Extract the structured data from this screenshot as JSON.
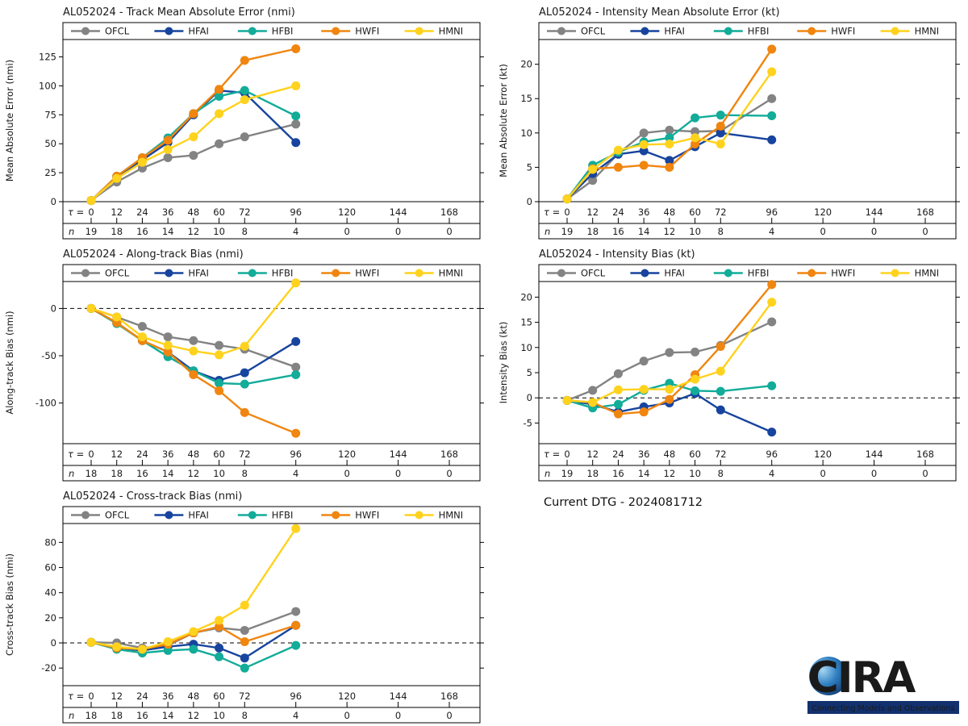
{
  "models": [
    {
      "name": "OFCL",
      "color": "#838383"
    },
    {
      "name": "HFAI",
      "color": "#17449e"
    },
    {
      "name": "HFBI",
      "color": "#12ac99"
    },
    {
      "name": "HWFI",
      "color": "#f0850f"
    },
    {
      "name": "HMNI",
      "color": "#ffd21d"
    }
  ],
  "footer": {
    "current_dtg": "Current DTG - 2024081712"
  },
  "logo": {
    "text": "CIRA",
    "tagline": "Connecting Models and Observations"
  },
  "axis_rows": {
    "tau_symbol": "τ",
    "tau_equals": " = ",
    "n_symbol": "n"
  },
  "chart_data": [
    {
      "id": "track-mae",
      "type": "line",
      "title": "AL052024 - Track Mean Absolute Error (nmi)",
      "ylabel": "Mean Absolute Error (nmi)",
      "legend_position": "top",
      "grid": false,
      "zero_line": false,
      "yticks": [
        0,
        25,
        50,
        75,
        100,
        125
      ],
      "ylim": [
        0,
        140
      ],
      "xticks": [
        0,
        12,
        24,
        36,
        48,
        60,
        72,
        96,
        120,
        144,
        168
      ],
      "x": [
        0,
        12,
        24,
        36,
        48,
        60,
        72,
        96
      ],
      "n": [
        19,
        18,
        16,
        14,
        12,
        10,
        8,
        4,
        0,
        0,
        0
      ],
      "series": [
        {
          "name": "OFCL",
          "values": [
            1,
            17,
            29,
            38,
            40,
            50,
            56,
            67
          ]
        },
        {
          "name": "HFAI",
          "values": [
            1,
            21,
            36,
            51,
            75,
            96,
            94,
            51
          ]
        },
        {
          "name": "HFBI",
          "values": [
            1,
            22,
            38,
            55,
            76,
            91,
            96,
            74
          ]
        },
        {
          "name": "HWFI",
          "values": [
            1,
            22,
            38,
            53,
            76,
            97,
            122,
            132
          ]
        },
        {
          "name": "HMNI",
          "values": [
            1,
            20,
            34,
            45,
            56,
            76,
            88,
            100
          ]
        }
      ]
    },
    {
      "id": "intensity-mae",
      "type": "line",
      "title": "AL052024 - Intensity Mean Absolute Error (kt)",
      "ylabel": "Mean Absolute Error (kt)",
      "legend_position": "top",
      "grid": false,
      "zero_line": false,
      "yticks": [
        0,
        5,
        10,
        15,
        20
      ],
      "ylim": [
        0,
        23.6
      ],
      "xticks": [
        0,
        12,
        24,
        36,
        48,
        60,
        72,
        96,
        120,
        144,
        168
      ],
      "x": [
        0,
        12,
        24,
        36,
        48,
        60,
        72,
        96
      ],
      "n": [
        19,
        18,
        16,
        14,
        12,
        10,
        8,
        4,
        0,
        0,
        0
      ],
      "series": [
        {
          "name": "OFCL",
          "values": [
            0.4,
            3.1,
            7.0,
            10.0,
            10.4,
            10.2,
            10.3,
            15.0
          ]
        },
        {
          "name": "HFAI",
          "values": [
            0.4,
            4.1,
            6.9,
            7.4,
            6.0,
            8.0,
            10.0,
            9.0
          ]
        },
        {
          "name": "HFBI",
          "values": [
            0.4,
            5.3,
            7.2,
            8.7,
            9.3,
            12.2,
            12.6,
            12.5
          ]
        },
        {
          "name": "HWFI",
          "values": [
            0.4,
            4.8,
            5.0,
            5.3,
            5.0,
            8.4,
            11.0,
            22.2
          ]
        },
        {
          "name": "HMNI",
          "values": [
            0.4,
            4.7,
            7.5,
            8.3,
            8.4,
            9.3,
            8.4,
            18.9
          ]
        }
      ]
    },
    {
      "id": "along-track-bias",
      "type": "line",
      "title": "AL052024 - Along-track Bias (nmi)",
      "ylabel": "Along-track Bias (nmi)",
      "legend_position": "top",
      "grid": false,
      "zero_line": true,
      "yticks": [
        0,
        -50,
        -100
      ],
      "ylim": [
        -143,
        28.5
      ],
      "xticks": [
        0,
        12,
        24,
        36,
        48,
        60,
        72,
        96,
        120,
        144,
        168
      ],
      "x": [
        0,
        12,
        24,
        36,
        48,
        60,
        72,
        96
      ],
      "n": [
        18,
        18,
        16,
        14,
        12,
        10,
        8,
        4,
        0,
        0,
        0
      ],
      "series": [
        {
          "name": "OFCL",
          "values": [
            0,
            -9,
            -19,
            -30,
            -34,
            -39,
            -43,
            -62
          ]
        },
        {
          "name": "HFAI",
          "values": [
            0,
            -15,
            -34,
            -46,
            -66,
            -76,
            -68,
            -35
          ]
        },
        {
          "name": "HFBI",
          "values": [
            0,
            -16,
            -34,
            -51,
            -66,
            -79,
            -80,
            -70
          ]
        },
        {
          "name": "HWFI",
          "values": [
            0,
            -15,
            -34,
            -46,
            -70,
            -87,
            -110,
            -132
          ]
        },
        {
          "name": "HMNI",
          "values": [
            0,
            -9,
            -30,
            -39,
            -45,
            -49,
            -40,
            27
          ]
        }
      ]
    },
    {
      "id": "intensity-bias",
      "type": "line",
      "title": "AL052024 - Intensity Bias (kt)",
      "ylabel": "Intensity Bias (kt)",
      "legend_position": "top",
      "grid": false,
      "zero_line": true,
      "yticks": [
        20,
        15,
        10,
        5,
        0,
        -5
      ],
      "ylim": [
        -9.1,
        23.1
      ],
      "xticks": [
        0,
        12,
        24,
        36,
        48,
        60,
        72,
        96,
        120,
        144,
        168
      ],
      "x": [
        0,
        12,
        24,
        36,
        48,
        60,
        72,
        96
      ],
      "n": [
        19,
        18,
        16,
        14,
        12,
        10,
        8,
        4,
        0,
        0,
        0
      ],
      "series": [
        {
          "name": "OFCL",
          "values": [
            -0.5,
            1.5,
            4.8,
            7.3,
            9.0,
            9.1,
            10.4,
            15.1
          ]
        },
        {
          "name": "HFAI",
          "values": [
            -0.5,
            -1.3,
            -2.8,
            -1.8,
            -1.0,
            0.9,
            -2.4,
            -6.8
          ]
        },
        {
          "name": "HFBI",
          "values": [
            -0.5,
            -2.0,
            -1.3,
            1.5,
            2.9,
            1.4,
            1.3,
            2.4
          ]
        },
        {
          "name": "HWFI",
          "values": [
            -0.5,
            -0.9,
            -3.2,
            -2.8,
            -0.3,
            4.6,
            10.2,
            22.5
          ]
        },
        {
          "name": "HMNI",
          "values": [
            -0.5,
            -0.9,
            1.6,
            1.7,
            1.7,
            3.7,
            5.3,
            19.0
          ]
        }
      ]
    },
    {
      "id": "cross-track-bias",
      "type": "line",
      "title": "AL052024 - Cross-track Bias (nmi)",
      "ylabel": "Cross-track Bias (nmi)",
      "legend_position": "top",
      "grid": false,
      "zero_line": true,
      "yticks": [
        80,
        60,
        40,
        20,
        0,
        -20
      ],
      "ylim": [
        -34,
        95
      ],
      "xticks": [
        0,
        12,
        24,
        36,
        48,
        60,
        72,
        96,
        120,
        144,
        168
      ],
      "x": [
        0,
        12,
        24,
        36,
        48,
        60,
        72,
        96
      ],
      "n": [
        18,
        18,
        16,
        14,
        12,
        10,
        8,
        4,
        0,
        0,
        0
      ],
      "series": [
        {
          "name": "OFCL",
          "values": [
            0.5,
            0,
            -4,
            -2,
            8,
            12,
            10,
            25
          ]
        },
        {
          "name": "HFAI",
          "values": [
            0.5,
            -4,
            -6,
            -3,
            -1,
            -4,
            -12,
            14
          ]
        },
        {
          "name": "HFBI",
          "values": [
            0.5,
            -5,
            -8,
            -6,
            -5,
            -11,
            -20,
            -2
          ]
        },
        {
          "name": "HWFI",
          "values": [
            0.5,
            -4,
            -5,
            -1,
            8,
            13,
            1,
            14
          ]
        },
        {
          "name": "HMNI",
          "values": [
            0.5,
            -3,
            -5,
            1,
            9,
            18,
            30,
            91
          ]
        }
      ]
    }
  ]
}
